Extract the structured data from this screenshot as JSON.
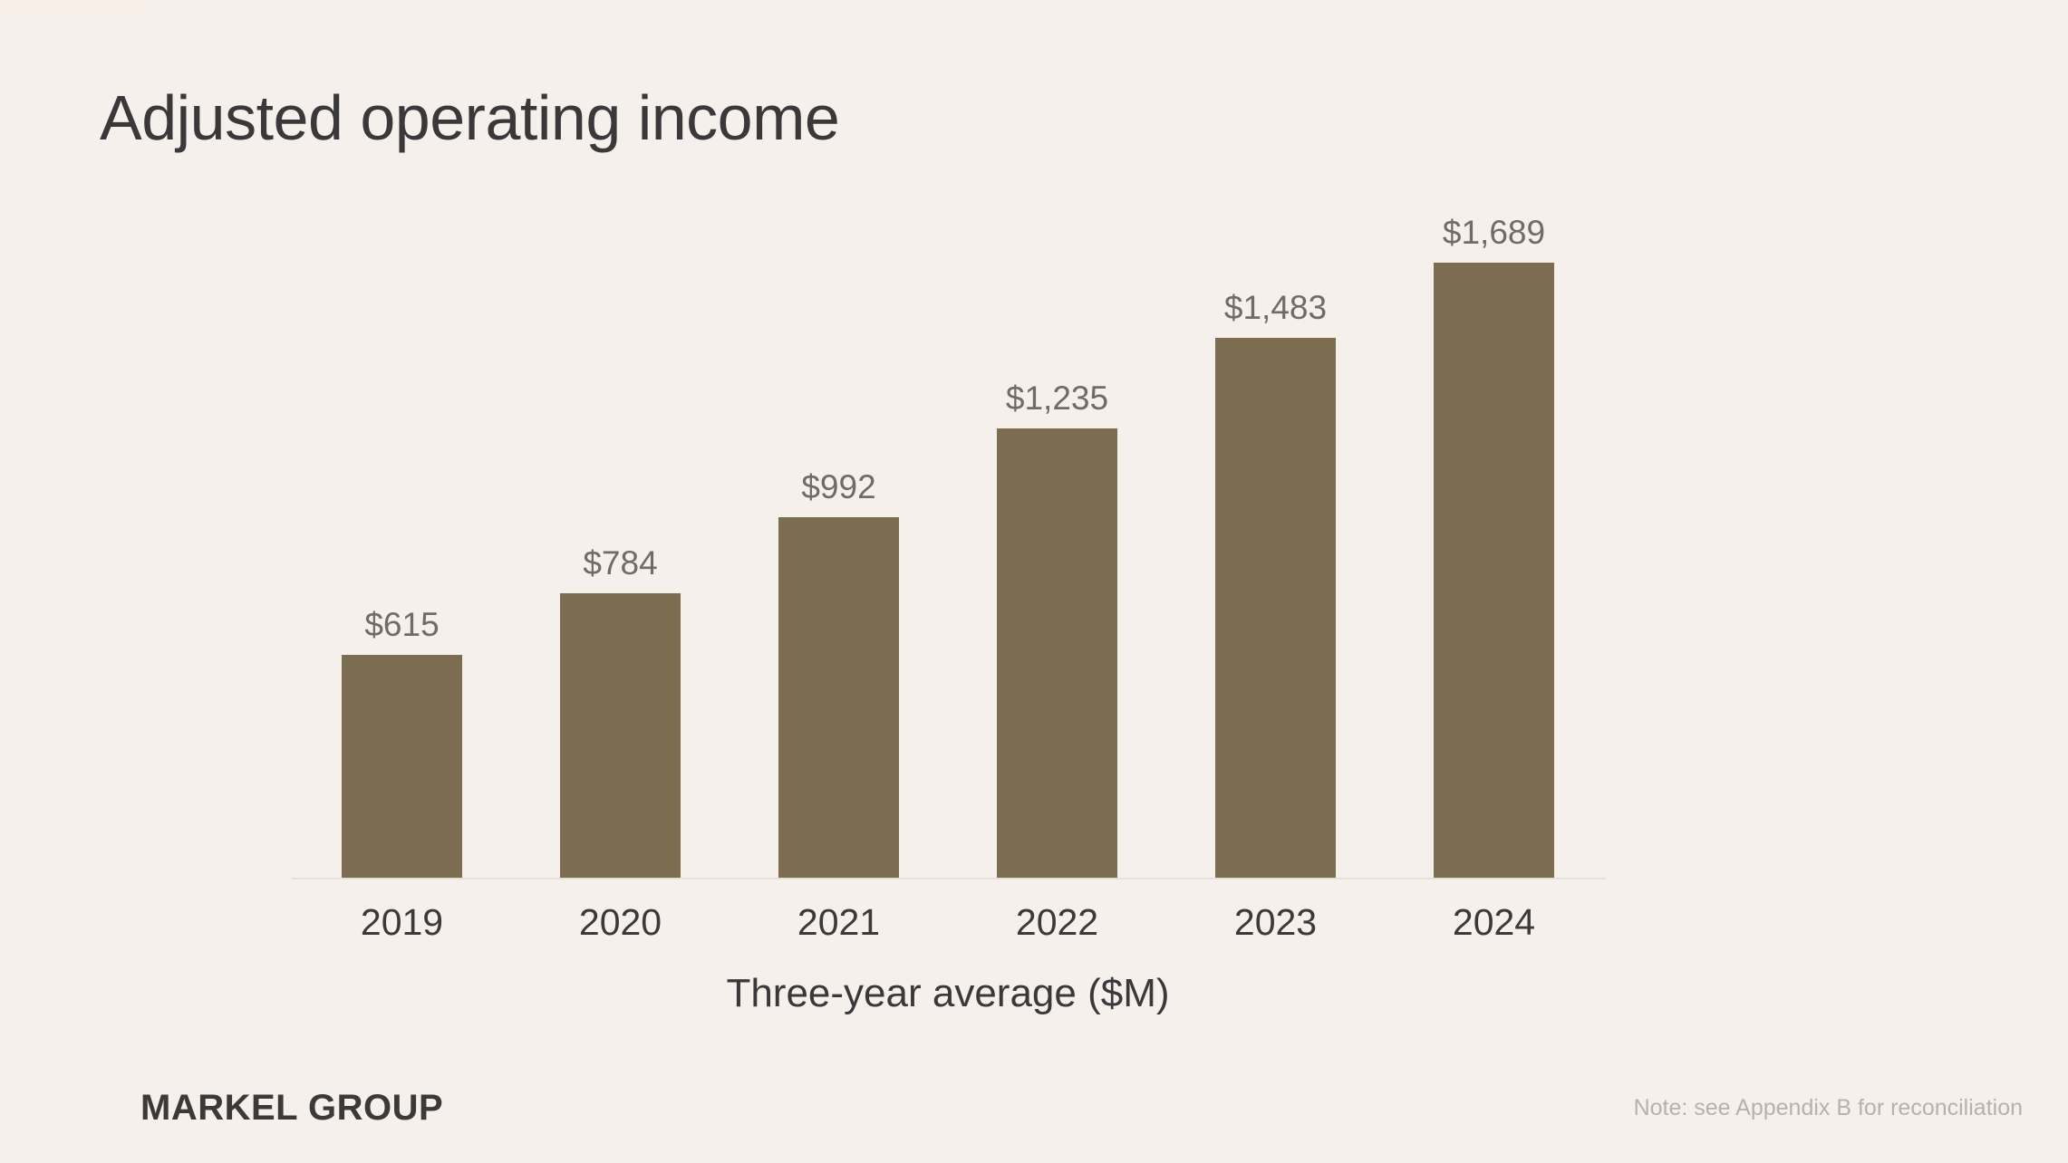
{
  "page": {
    "background_color": "#f5f0eb",
    "accent_bar_color": "#f8efe9"
  },
  "header": {
    "title": "Adjusted operating income"
  },
  "chart_data": {
    "type": "bar",
    "title": "Adjusted operating income",
    "categories": [
      "2019",
      "2020",
      "2021",
      "2022",
      "2023",
      "2024"
    ],
    "values": [
      615,
      784,
      992,
      1235,
      1483,
      1689
    ],
    "value_labels": [
      "$615",
      "$784",
      "$992",
      "$1,235",
      "$1,483",
      "$1,689"
    ],
    "xlabel": "Three-year average ($M)",
    "ylabel": "",
    "ylim": [
      0,
      1800
    ],
    "bar_color": "#7c6c50",
    "value_label_color": "#6f6b68",
    "tick_label_color": "#3b393a",
    "grid": false,
    "legend": false,
    "axis_line_color": "#e7e0d8"
  },
  "footer": {
    "logo": "MARKEL GROUP",
    "note": "Note: see Appendix B for reconciliation"
  }
}
